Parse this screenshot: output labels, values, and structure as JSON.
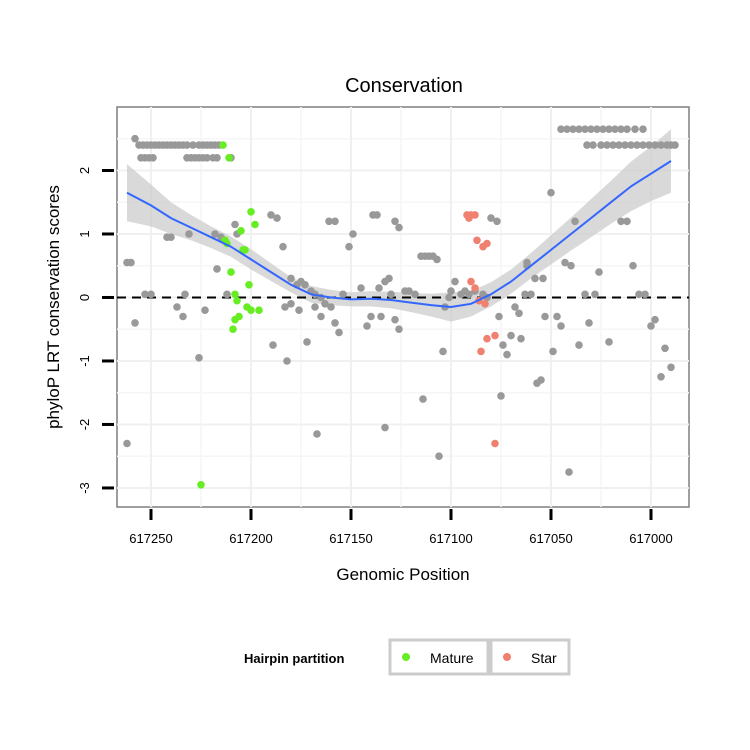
{
  "chart_data": {
    "type": "scatter",
    "title": "Conservation",
    "xlabel": "Genomic Position",
    "ylabel": "phyloP LRT conservation scores",
    "x_reversed": true,
    "xlim": [
      617267,
      616981
    ],
    "ylim": [
      -3.3,
      3.0
    ],
    "x_ticks": [
      617250,
      617200,
      617150,
      617100,
      617050,
      617000
    ],
    "x_tick_labels": [
      "617250",
      "617200",
      "617150",
      "617100",
      "617050",
      "617000"
    ],
    "y_ticks": [
      -3,
      -2,
      -1,
      0,
      1,
      2
    ],
    "y_tick_labels": [
      "-3",
      "-2",
      "-1",
      "0",
      "1",
      "2"
    ],
    "reference_line": {
      "y": 0,
      "style": "dashed"
    },
    "colors": {
      "other": "#999999",
      "mature": "#66ee22",
      "star": "#f08070",
      "smooth_line": "#3366ff",
      "confidence_band": "#cccccc"
    },
    "legend": {
      "title": "Hairpin partition",
      "entries": [
        {
          "label": "Mature",
          "color": "#66ee22"
        },
        {
          "label": "Star",
          "color": "#f08070"
        }
      ]
    },
    "series": [
      {
        "name": "Other",
        "points": [
          [
            617258,
            2.5
          ],
          [
            617256,
            2.4
          ],
          [
            617254,
            2.4
          ],
          [
            617252,
            2.4
          ],
          [
            617250,
            2.4
          ],
          [
            617248,
            2.4
          ],
          [
            617246,
            2.4
          ],
          [
            617244,
            2.4
          ],
          [
            617242,
            2.4
          ],
          [
            617240,
            2.4
          ],
          [
            617238,
            2.4
          ],
          [
            617236,
            2.4
          ],
          [
            617234,
            2.4
          ],
          [
            617232,
            2.4
          ],
          [
            617255,
            2.2
          ],
          [
            617253,
            2.2
          ],
          [
            617251,
            2.2
          ],
          [
            617249,
            2.2
          ],
          [
            617229,
            2.4
          ],
          [
            617226,
            2.4
          ],
          [
            617224,
            2.4
          ],
          [
            617222,
            2.4
          ],
          [
            617220,
            2.4
          ],
          [
            617218,
            2.4
          ],
          [
            617216,
            2.4
          ],
          [
            617232,
            2.2
          ],
          [
            617230,
            2.2
          ],
          [
            617228,
            2.2
          ],
          [
            617226,
            2.2
          ],
          [
            617224,
            2.2
          ],
          [
            617222,
            2.2
          ],
          [
            617219,
            2.2
          ],
          [
            617217,
            2.2
          ],
          [
            617210,
            2.2
          ],
          [
            617262,
            0.55
          ],
          [
            617260,
            0.55
          ],
          [
            617258,
            -0.4
          ],
          [
            617262,
            -2.3
          ],
          [
            617253,
            0.05
          ],
          [
            617250,
            0.05
          ],
          [
            617242,
            0.95
          ],
          [
            617240,
            0.95
          ],
          [
            617231,
            1.0
          ],
          [
            617233,
            0.05
          ],
          [
            617234,
            -0.3
          ],
          [
            617237,
            -0.15
          ],
          [
            617226,
            -0.95
          ],
          [
            617223,
            -0.2
          ],
          [
            617218,
            1.0
          ],
          [
            617217,
            0.45
          ],
          [
            617215,
            0.95
          ],
          [
            617212,
            0.05
          ],
          [
            617208,
            1.15
          ],
          [
            617207,
            1.0
          ],
          [
            617190,
            1.3
          ],
          [
            617187,
            1.25
          ],
          [
            617184,
            0.8
          ],
          [
            617180,
            0.3
          ],
          [
            617177,
            0.2
          ],
          [
            617175,
            0.25
          ],
          [
            617173,
            0.2
          ],
          [
            617170,
            0.1
          ],
          [
            617168,
            0.05
          ],
          [
            617165,
            0.0
          ],
          [
            617183,
            -0.15
          ],
          [
            617180,
            -0.1
          ],
          [
            617176,
            -0.2
          ],
          [
            617172,
            -0.7
          ],
          [
            617168,
            -0.15
          ],
          [
            617165,
            -0.3
          ],
          [
            617163,
            -0.1
          ],
          [
            617160,
            -0.15
          ],
          [
            617158,
            -0.4
          ],
          [
            617156,
            -0.55
          ],
          [
            617182,
            -1.0
          ],
          [
            617189,
            -0.75
          ],
          [
            617167,
            -2.15
          ],
          [
            617161,
            1.2
          ],
          [
            617158,
            1.2
          ],
          [
            617154,
            0.05
          ],
          [
            617151,
            0.8
          ],
          [
            617149,
            1.0
          ],
          [
            617145,
            0.15
          ],
          [
            617142,
            -0.45
          ],
          [
            617140,
            -0.3
          ],
          [
            617139,
            1.3
          ],
          [
            617137,
            1.3
          ],
          [
            617136,
            0.15
          ],
          [
            617133,
            0.25
          ],
          [
            617131,
            0.3
          ],
          [
            617130,
            0.05
          ],
          [
            617128,
            -0.35
          ],
          [
            617126,
            -0.5
          ],
          [
            617123,
            0.1
          ],
          [
            617121,
            0.1
          ],
          [
            617135,
            -0.3
          ],
          [
            617133,
            -2.05
          ],
          [
            617128,
            1.2
          ],
          [
            617126,
            1.1
          ],
          [
            617118,
            0.05
          ],
          [
            617115,
            0.65
          ],
          [
            617113,
            0.65
          ],
          [
            617111,
            0.65
          ],
          [
            617109,
            0.65
          ],
          [
            617107,
            0.6
          ],
          [
            617114,
            -1.6
          ],
          [
            617106,
            -2.5
          ],
          [
            617104,
            -0.85
          ],
          [
            617103,
            -0.15
          ],
          [
            617101,
            0.0
          ],
          [
            617100,
            0.1
          ],
          [
            617098,
            0.25
          ],
          [
            617095,
            0.05
          ],
          [
            617093,
            0.1
          ],
          [
            617091,
            0.05
          ],
          [
            617088,
            0.1
          ],
          [
            617084,
            0.05
          ],
          [
            617082,
            0.0
          ],
          [
            617080,
            1.25
          ],
          [
            617077,
            1.2
          ],
          [
            617076,
            -0.3
          ],
          [
            617075,
            -1.55
          ],
          [
            617074,
            -0.75
          ],
          [
            617072,
            -0.9
          ],
          [
            617070,
            -0.6
          ],
          [
            617068,
            -0.15
          ],
          [
            617066,
            -0.25
          ],
          [
            617065,
            -0.65
          ],
          [
            617063,
            0.05
          ],
          [
            617062,
            0.5
          ],
          [
            617060,
            0.05
          ],
          [
            617058,
            0.3
          ],
          [
            617057,
            -1.35
          ],
          [
            617055,
            -1.3
          ],
          [
            617054,
            0.3
          ],
          [
            617053,
            -0.3
          ],
          [
            617050,
            1.65
          ],
          [
            617049,
            -0.85
          ],
          [
            617047,
            -0.3
          ],
          [
            617045,
            -0.45
          ],
          [
            617043,
            0.55
          ],
          [
            617041,
            -2.75
          ],
          [
            617040,
            0.5
          ],
          [
            617038,
            1.2
          ],
          [
            617036,
            -0.75
          ],
          [
            617033,
            0.05
          ],
          [
            617031,
            -0.4
          ],
          [
            617028,
            0.05
          ],
          [
            617026,
            0.4
          ],
          [
            617021,
            -0.7
          ],
          [
            617015,
            1.2
          ],
          [
            617012,
            1.2
          ],
          [
            617009,
            0.5
          ],
          [
            617006,
            0.05
          ],
          [
            617003,
            0.05
          ],
          [
            617000,
            -0.45
          ],
          [
            616998,
            -0.35
          ],
          [
            616995,
            -1.25
          ],
          [
            616993,
            -0.8
          ],
          [
            616990,
            -1.1
          ],
          [
            617045,
            2.65
          ],
          [
            617042,
            2.65
          ],
          [
            617039,
            2.65
          ],
          [
            617036,
            2.65
          ],
          [
            617033,
            2.65
          ],
          [
            617030,
            2.65
          ],
          [
            617027,
            2.65
          ],
          [
            617024,
            2.65
          ],
          [
            617021,
            2.65
          ],
          [
            617018,
            2.65
          ],
          [
            617015,
            2.65
          ],
          [
            617012,
            2.65
          ],
          [
            617008,
            2.65
          ],
          [
            617004,
            2.65
          ],
          [
            617032,
            2.4
          ],
          [
            617029,
            2.4
          ],
          [
            617025,
            2.4
          ],
          [
            617022,
            2.4
          ],
          [
            617019,
            2.4
          ],
          [
            617016,
            2.4
          ],
          [
            617013,
            2.4
          ],
          [
            617010,
            2.4
          ],
          [
            617007,
            2.4
          ],
          [
            617004,
            2.4
          ],
          [
            617001,
            2.4
          ],
          [
            616998,
            2.4
          ],
          [
            616995,
            2.4
          ],
          [
            616992,
            2.4
          ],
          [
            616990,
            2.4
          ],
          [
            616988,
            2.4
          ],
          [
            617062,
            0.55
          ]
        ]
      },
      {
        "name": "Mature",
        "points": [
          [
            617214,
            2.4
          ],
          [
            617211,
            2.2
          ],
          [
            617213,
            0.9
          ],
          [
            617212,
            0.85
          ],
          [
            617210,
            0.4
          ],
          [
            617208,
            0.05
          ],
          [
            617207,
            -0.05
          ],
          [
            617206,
            -0.3
          ],
          [
            617209,
            -0.5
          ],
          [
            617208,
            -0.35
          ],
          [
            617204,
            0.75
          ],
          [
            617203,
            0.75
          ],
          [
            617205,
            1.05
          ],
          [
            617200,
            1.35
          ],
          [
            617198,
            1.15
          ],
          [
            617201,
            0.2
          ],
          [
            617202,
            -0.15
          ],
          [
            617200,
            -0.2
          ],
          [
            617196,
            -0.2
          ],
          [
            617225,
            -2.95
          ]
        ]
      },
      {
        "name": "Star",
        "points": [
          [
            617092,
            1.3
          ],
          [
            617090,
            1.3
          ],
          [
            617088,
            1.3
          ],
          [
            617091,
            1.25
          ],
          [
            617087,
            0.9
          ],
          [
            617084,
            0.8
          ],
          [
            617082,
            0.85
          ],
          [
            617090,
            0.25
          ],
          [
            617088,
            0.15
          ],
          [
            617086,
            -0.05
          ],
          [
            617083,
            -0.1
          ],
          [
            617085,
            -0.85
          ],
          [
            617082,
            -0.65
          ],
          [
            617078,
            -0.6
          ],
          [
            617078,
            -2.3
          ]
        ]
      }
    ],
    "smooth_curve": {
      "method": "loess",
      "x": [
        617262,
        617250,
        617240,
        617230,
        617220,
        617210,
        617200,
        617190,
        617180,
        617170,
        617160,
        617150,
        617140,
        617130,
        617120,
        617110,
        617100,
        617090,
        617080,
        617070,
        617060,
        617050,
        617040,
        617030,
        617020,
        617010,
        617000,
        616990
      ],
      "y": [
        1.65,
        1.45,
        1.25,
        1.1,
        0.95,
        0.8,
        0.6,
        0.4,
        0.2,
        0.05,
        0.0,
        -0.03,
        -0.02,
        -0.04,
        -0.08,
        -0.12,
        -0.15,
        -0.1,
        0.05,
        0.25,
        0.5,
        0.75,
        1.0,
        1.25,
        1.5,
        1.75,
        1.95,
        2.15
      ],
      "ci_lower": [
        1.2,
        1.12,
        1.0,
        0.9,
        0.78,
        0.64,
        0.44,
        0.26,
        0.08,
        -0.08,
        -0.12,
        -0.14,
        -0.14,
        -0.17,
        -0.23,
        -0.3,
        -0.38,
        -0.3,
        -0.14,
        0.06,
        0.3,
        0.52,
        0.74,
        0.95,
        1.16,
        1.36,
        1.52,
        1.65
      ],
      "ci_upper": [
        2.1,
        1.78,
        1.5,
        1.3,
        1.12,
        0.96,
        0.76,
        0.54,
        0.32,
        0.18,
        0.12,
        0.08,
        0.1,
        0.09,
        0.07,
        0.06,
        0.08,
        0.1,
        0.24,
        0.44,
        0.7,
        0.98,
        1.26,
        1.55,
        1.84,
        2.14,
        2.38,
        2.65
      ]
    }
  }
}
